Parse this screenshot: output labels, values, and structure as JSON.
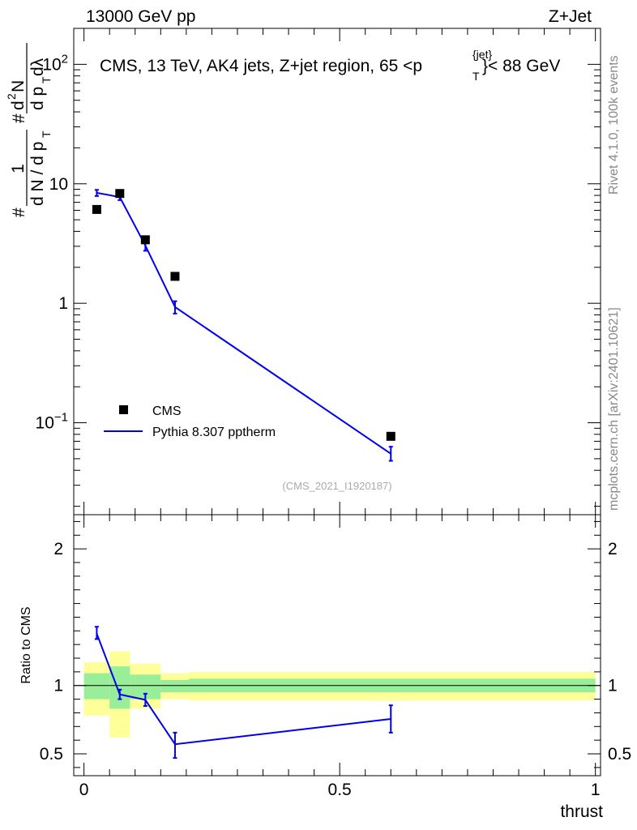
{
  "header": {
    "left": "13000 GeV pp",
    "right": "Z+Jet"
  },
  "side_text": {
    "rivet": "Rivet 4.1.0,  100k events",
    "mcplots": "mcplots.cern.ch [arXiv:2401.10621]"
  },
  "chart_data": [
    {
      "type": "scatter",
      "role": "main",
      "title": "CMS, 13 TeV, AK4 jets, Z+jet region, 65 <p",
      "title_sup": "{jet}",
      "title_sub": "T",
      "title_tail": "}< 88 GeV",
      "watermark": "(CMS_2021_I1920187)",
      "ylabel": {
        "prefix": "#",
        "one": "1",
        "den": "d N / d p",
        "den_sub": "T",
        "hash2": "#",
        "frac_num": "d",
        "frac_num_sup": "2",
        "frac_num_tail": "N",
        "frac_den": "d p",
        "frac_den_sub": "T",
        "frac_den_tail": " dλ"
      },
      "yscale": "log",
      "ylim": [
        0.017,
        200
      ],
      "xlim": [
        -0.02,
        1.01
      ],
      "yticks": [
        {
          "value": 100,
          "label": "10",
          "sup": "2"
        },
        {
          "value": 10,
          "label": "10",
          "sup": ""
        },
        {
          "value": 1,
          "label": "1",
          "sup": ""
        },
        {
          "value": 0.1,
          "label": "10",
          "sup": "−1"
        }
      ],
      "legend": {
        "position": "bottom-left",
        "data_label": "CMS",
        "mc_label": "Pythia 8.307 pptherm"
      },
      "series": [
        {
          "name": "CMS",
          "style": "markers",
          "color": "#000000",
          "x": [
            0.025,
            0.07,
            0.12,
            0.178,
            0.6
          ],
          "y": [
            6.1,
            8.3,
            3.4,
            1.68,
            0.077
          ]
        },
        {
          "name": "Pythia 8.307 pptherm",
          "style": "line",
          "color": "#0000ee",
          "x": [
            0.025,
            0.07,
            0.12,
            0.178,
            0.6
          ],
          "y": [
            8.4,
            7.75,
            3.05,
            0.93,
            0.055
          ],
          "err_lo": [
            7.9,
            7.3,
            2.75,
            0.82,
            0.048
          ],
          "err_hi": [
            8.9,
            8.2,
            3.35,
            1.04,
            0.063
          ]
        }
      ]
    },
    {
      "type": "line",
      "role": "ratio",
      "ylabel": "Ratio to CMS",
      "xlabel": "thrust",
      "xlim": [
        -0.02,
        1.01
      ],
      "ylim": [
        0.34,
        2.25
      ],
      "xticks": [
        {
          "value": 0,
          "label": "0"
        },
        {
          "value": 0.5,
          "label": "0.5"
        },
        {
          "value": 1,
          "label": "1"
        }
      ],
      "yticks": [
        {
          "value": 0.5,
          "label": "0.5"
        },
        {
          "value": 1,
          "label": "1"
        },
        {
          "value": 2,
          "label": "2"
        }
      ],
      "bands": [
        {
          "x0": 0.0,
          "x1": 0.05,
          "stat_lo": 0.9,
          "stat_hi": 1.09,
          "tot_lo": 0.78,
          "tot_hi": 1.17
        },
        {
          "x0": 0.05,
          "x1": 0.09,
          "stat_lo": 0.83,
          "stat_hi": 1.14,
          "tot_lo": 0.62,
          "tot_hi": 1.25
        },
        {
          "x0": 0.09,
          "x1": 0.15,
          "stat_lo": 0.9,
          "stat_hi": 1.08,
          "tot_lo": 0.83,
          "tot_hi": 1.16
        },
        {
          "x0": 0.15,
          "x1": 0.205,
          "stat_lo": 0.95,
          "stat_hi": 1.04,
          "tot_lo": 0.9,
          "tot_hi": 1.09
        },
        {
          "x0": 0.205,
          "x1": 1.0,
          "stat_lo": 0.95,
          "stat_hi": 1.05,
          "tot_lo": 0.89,
          "tot_hi": 1.1
        }
      ],
      "series": [
        {
          "name": "Pythia 8.307 pptherm / CMS",
          "color": "#0000ee",
          "x": [
            0.025,
            0.07,
            0.12,
            0.178,
            0.6
          ],
          "y": [
            1.38,
            0.935,
            0.895,
            0.57,
            0.755
          ],
          "err_lo": [
            1.34,
            0.9,
            0.85,
            0.47,
            0.655
          ],
          "err_hi": [
            1.43,
            0.97,
            0.94,
            0.655,
            0.855
          ]
        }
      ],
      "colors": {
        "stat": "#99ee99",
        "total": "#ffff99",
        "reference": "#000000"
      }
    }
  ]
}
